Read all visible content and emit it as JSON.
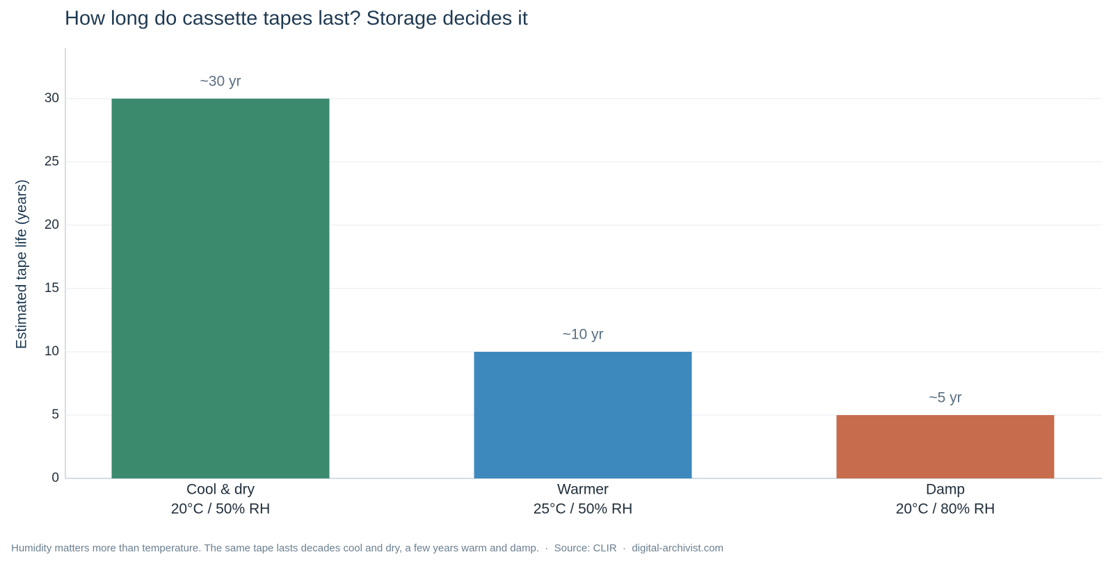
{
  "chart_data": {
    "type": "bar",
    "title": "How long do cassette tapes last? Storage decides it",
    "y_label": "Estimated tape life (years)",
    "categories": [
      [
        "Cool & dry",
        "20°C / 50% RH"
      ],
      [
        "Warmer",
        "25°C / 50% RH"
      ],
      [
        "Damp",
        "20°C / 80% RH"
      ]
    ],
    "values": [
      30,
      10,
      5
    ],
    "value_labels": [
      "~30 yr",
      "~10 yr",
      "~5 yr"
    ],
    "colors": [
      "#3c8a6e",
      "#3d89be",
      "#c76c4c"
    ],
    "ylim": [
      0,
      34
    ],
    "yticks": [
      0,
      5,
      10,
      15,
      20,
      25,
      30
    ],
    "grid": true,
    "footnote": "Humidity matters more than temperature. The same tape lasts decades cool and dry, a few years warm and damp.  ·  Source: CLIR  ·  digital-archivist.com"
  }
}
